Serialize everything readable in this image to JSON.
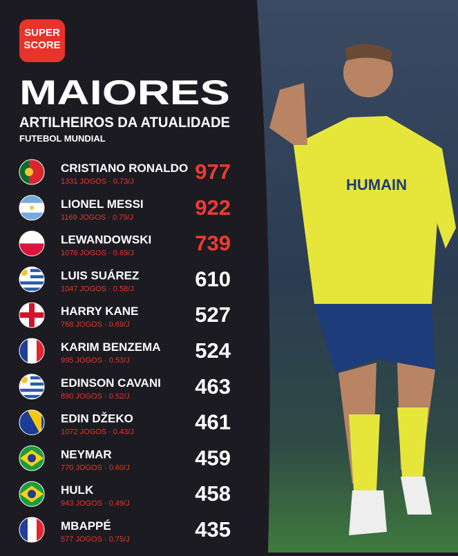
{
  "logo": {
    "lines": [
      "SUPER",
      "SCORE"
    ]
  },
  "header": {
    "title": "MAIORES",
    "subtitle": "ARTILHEIROS DA ATUALIDADE",
    "caption": "FUTEBOL MUNDIAL"
  },
  "rows": [
    {
      "name": "CRISTIANO RONALDO",
      "stats": "1331 JOGOS · 0.73/J",
      "goals": 977
    },
    {
      "name": "LIONEL MESSI",
      "stats": "1169 JOGOS · 0.79/J",
      "goals": 922
    },
    {
      "name": "LEWANDOWSKI",
      "stats": "1076 JOGOS · 0.69/J",
      "goals": 739
    },
    {
      "name": "LUIS SUÁREZ",
      "stats": "1047 JOGOS · 0.58/J",
      "goals": 610
    },
    {
      "name": "HARRY KANE",
      "stats": "768 JOGOS · 0.69/J",
      "goals": 527
    },
    {
      "name": "KARIM BENZEMA",
      "stats": "995 JOGOS · 0.53/J",
      "goals": 524
    },
    {
      "name": "EDINSON CAVANI",
      "stats": "890 JOGOS · 0.52/J",
      "goals": 463
    },
    {
      "name": "EDIN DŽEKO",
      "stats": "1072 JOGOS · 0.43/J",
      "goals": 461
    },
    {
      "name": "NEYMAR",
      "stats": "770 JOGOS · 0.60/J",
      "goals": 459
    },
    {
      "name": "HULK",
      "stats": "943 JOGOS · 0.49/J",
      "goals": 458
    },
    {
      "name": "MBAPPÉ",
      "stats": "577 JOGOS · 0.75/J",
      "goals": 435
    }
  ]
}
